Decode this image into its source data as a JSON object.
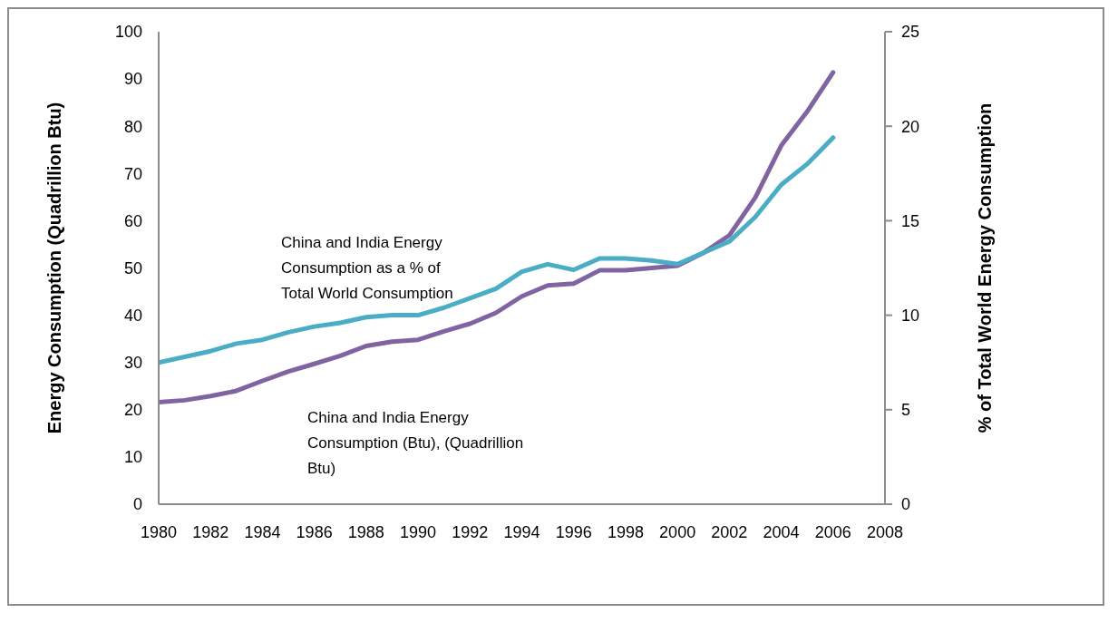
{
  "chart_data": {
    "type": "line",
    "ylabel": "Energy  Consumption (Quadrillion  Btu)",
    "y2label": "% of Total World Energy Consumption",
    "x": [
      1980,
      1981,
      1982,
      1983,
      1984,
      1985,
      1986,
      1987,
      1988,
      1989,
      1990,
      1991,
      1992,
      1993,
      1994,
      1995,
      1996,
      1997,
      1998,
      1999,
      2000,
      2001,
      2002,
      2003,
      2004,
      2005,
      2006
    ],
    "series": [
      {
        "name": "China and India Energy Consumption (Btu), (Quadrillion  Btu)",
        "color": "#8064a2",
        "values": [
          21.6,
          22,
          22.9,
          24,
          26.1,
          28.1,
          29.7,
          31.4,
          33.5,
          34.4,
          34.8,
          36.6,
          38.2,
          40.5,
          44,
          46.3,
          46.7,
          49.5,
          49.5,
          50,
          50.5,
          53.2,
          56.9,
          64.9,
          75.9,
          83.1,
          91.4
        ]
      },
      {
        "name": "China and India Energy Consumption as a % of Total World Consumption",
        "color": "#4bacc6",
        "axis": "y2",
        "values": [
          7.5,
          7.8,
          8.1,
          8.5,
          8.7,
          9.1,
          9.4,
          9.6,
          9.9,
          10,
          10,
          10.4,
          10.9,
          11.4,
          12.3,
          12.7,
          12.4,
          13,
          13,
          12.9,
          12.7,
          13.3,
          13.9,
          15.2,
          16.9,
          18,
          19.4
        ]
      }
    ],
    "xlim": [
      1980,
      2008
    ],
    "xticks": [
      1980,
      1982,
      1984,
      1986,
      1988,
      1990,
      1992,
      1994,
      1996,
      1998,
      2000,
      2002,
      2004,
      2006,
      2008
    ],
    "ylim": [
      0,
      100
    ],
    "yticks": [
      0,
      10,
      20,
      30,
      40,
      50,
      60,
      70,
      80,
      90,
      100
    ],
    "y2lim": [
      0,
      25
    ],
    "y2ticks": [
      0,
      5,
      10,
      15,
      20,
      25
    ],
    "marker": "none",
    "line_style": "solid"
  }
}
